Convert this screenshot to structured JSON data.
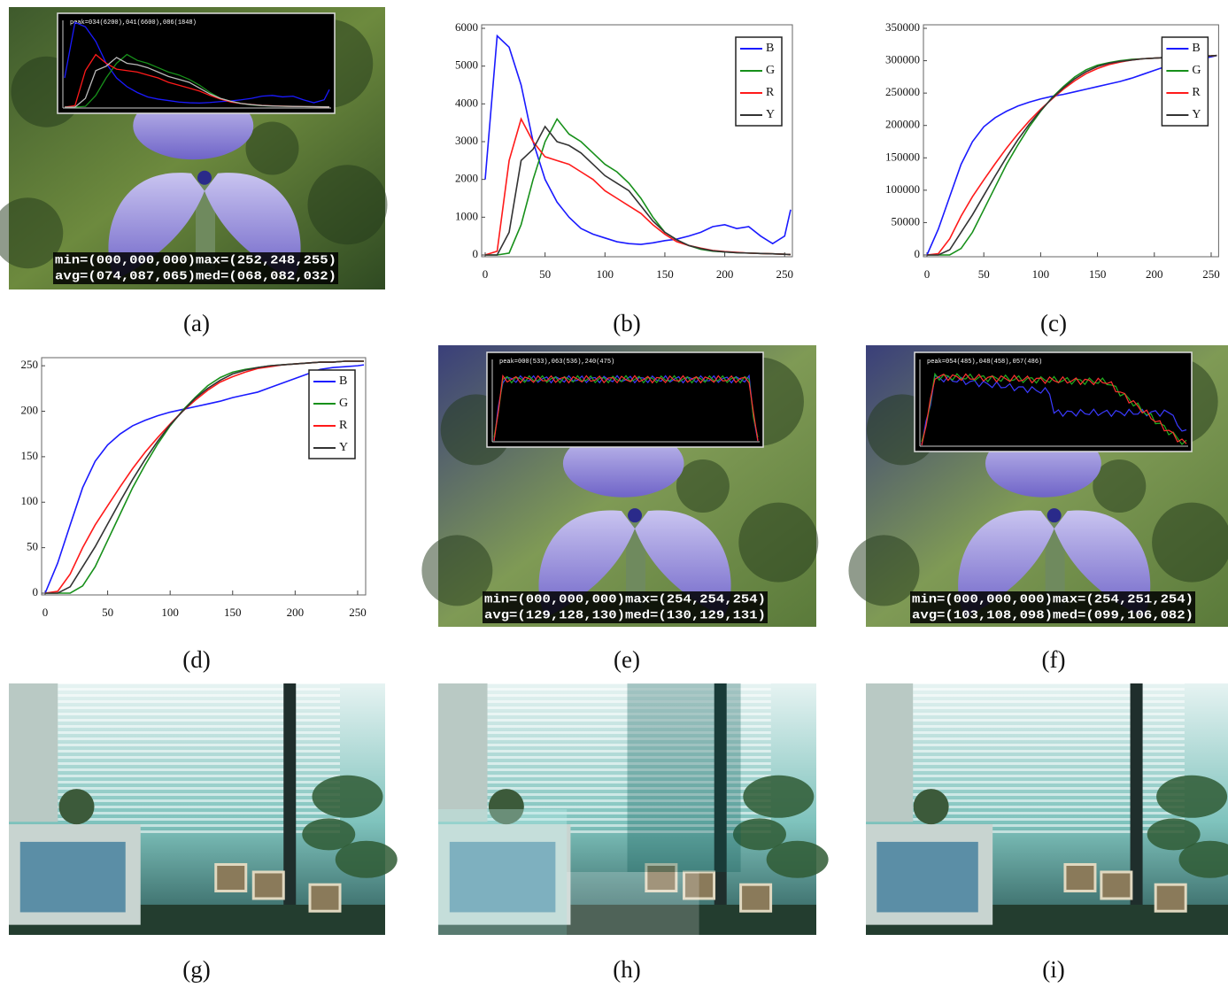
{
  "chart_data": [
    {
      "type": "line",
      "x": [
        0,
        10,
        20,
        30,
        40,
        50,
        60,
        70,
        80,
        90,
        100,
        110,
        120,
        130,
        140,
        150,
        160,
        170,
        180,
        190,
        200,
        210,
        220,
        230,
        240,
        250,
        255
      ],
      "xlim": [
        0,
        255
      ],
      "xticks": [
        0,
        50,
        100,
        150,
        200,
        250
      ],
      "ylim": [
        0,
        6000
      ],
      "yticks": [
        0,
        1000,
        2000,
        3000,
        4000,
        5000,
        6000
      ],
      "legend": "top-right",
      "series": [
        {
          "name": "B",
          "color": "#1a1aff",
          "values": [
            2000,
            5800,
            5500,
            4500,
            3000,
            2000,
            1400,
            1000,
            700,
            550,
            450,
            350,
            300,
            280,
            320,
            380,
            420,
            500,
            600,
            750,
            800,
            700,
            750,
            500,
            300,
            500,
            1200
          ]
        },
        {
          "name": "G",
          "color": "#17901a",
          "values": [
            0,
            0,
            50,
            800,
            2000,
            3000,
            3600,
            3200,
            3000,
            2700,
            2400,
            2200,
            1900,
            1500,
            1000,
            600,
            400,
            250,
            150,
            100,
            80,
            60,
            50,
            40,
            30,
            20,
            10
          ]
        },
        {
          "name": "R",
          "color": "#ff1a1a",
          "values": [
            0,
            100,
            2500,
            3600,
            3000,
            2600,
            2500,
            2400,
            2200,
            2000,
            1700,
            1500,
            1300,
            1100,
            800,
            550,
            350,
            250,
            180,
            120,
            90,
            70,
            50,
            40,
            30,
            20,
            10
          ]
        },
        {
          "name": "Y",
          "color": "#333333",
          "values": [
            0,
            0,
            600,
            2500,
            2800,
            3400,
            3000,
            2900,
            2700,
            2400,
            2100,
            1900,
            1700,
            1300,
            900,
            600,
            400,
            250,
            170,
            110,
            80,
            60,
            50,
            40,
            30,
            20,
            10
          ]
        }
      ]
    },
    {
      "type": "line",
      "x": [
        0,
        10,
        20,
        30,
        40,
        50,
        60,
        70,
        80,
        90,
        100,
        110,
        120,
        130,
        140,
        150,
        160,
        170,
        180,
        190,
        200,
        210,
        220,
        230,
        240,
        250,
        255
      ],
      "xlim": [
        0,
        255
      ],
      "xticks": [
        0,
        50,
        100,
        150,
        200,
        250
      ],
      "ylim": [
        0,
        350000
      ],
      "yticks": [
        0,
        50000,
        100000,
        150000,
        200000,
        250000,
        300000,
        350000
      ],
      "legend": "top-right",
      "series": [
        {
          "name": "B",
          "color": "#1a1aff",
          "values": [
            0,
            40000,
            90000,
            140000,
            175000,
            198000,
            212000,
            222000,
            230000,
            236000,
            241000,
            245000,
            248000,
            252000,
            256000,
            260000,
            264000,
            268000,
            273000,
            279000,
            285000,
            291000,
            297000,
            300000,
            303000,
            306000,
            308000
          ]
        },
        {
          "name": "G",
          "color": "#17901a",
          "values": [
            0,
            0,
            0,
            10000,
            35000,
            70000,
            105000,
            140000,
            170000,
            198000,
            222000,
            243000,
            260000,
            275000,
            286000,
            293000,
            297000,
            300000,
            302000,
            303000,
            304000,
            305000,
            306000,
            306500,
            307000,
            307500,
            308000
          ]
        },
        {
          "name": "R",
          "color": "#ff1a1a",
          "values": [
            0,
            2000,
            25000,
            60000,
            90000,
            116000,
            141000,
            165000,
            187000,
            207000,
            225000,
            241000,
            256000,
            269000,
            280000,
            288000,
            294000,
            298000,
            301000,
            303000,
            304000,
            305000,
            306000,
            306500,
            307000,
            307500,
            308000
          ]
        },
        {
          "name": "Y",
          "color": "#333333",
          "values": [
            0,
            0,
            8000,
            35000,
            62000,
            92000,
            122000,
            151000,
            178000,
            202000,
            223000,
            242000,
            258000,
            272000,
            283000,
            291000,
            296000,
            299000,
            301000,
            303000,
            304000,
            305000,
            306000,
            306500,
            307000,
            307500,
            308000
          ]
        }
      ]
    },
    {
      "type": "line",
      "x": [
        0,
        10,
        20,
        30,
        40,
        50,
        60,
        70,
        80,
        90,
        100,
        110,
        120,
        130,
        140,
        150,
        160,
        170,
        180,
        190,
        200,
        210,
        220,
        230,
        240,
        250,
        255
      ],
      "xlim": [
        0,
        255
      ],
      "xticks": [
        0,
        50,
        100,
        150,
        200,
        250
      ],
      "ylim": [
        0,
        255
      ],
      "yticks": [
        0,
        50,
        100,
        150,
        200,
        250
      ],
      "legend": "top-right",
      "series": [
        {
          "name": "B",
          "color": "#1a1aff",
          "values": [
            0,
            33,
            75,
            116,
            145,
            163,
            175,
            184,
            190,
            195,
            199,
            202,
            205,
            208,
            211,
            215,
            218,
            221,
            226,
            231,
            236,
            241,
            246,
            248,
            249,
            250,
            251
          ]
        },
        {
          "name": "G",
          "color": "#17901a",
          "values": [
            0,
            0,
            0,
            8,
            29,
            58,
            87,
            116,
            141,
            164,
            184,
            201,
            215,
            228,
            237,
            243,
            246,
            248,
            250,
            251,
            252,
            253,
            254,
            254,
            255,
            255,
            255
          ]
        },
        {
          "name": "R",
          "color": "#ff1a1a",
          "values": [
            0,
            2,
            21,
            50,
            75,
            96,
            117,
            137,
            155,
            171,
            186,
            200,
            212,
            223,
            232,
            238,
            243,
            247,
            249,
            251,
            252,
            253,
            254,
            254,
            255,
            255,
            255
          ]
        },
        {
          "name": "Y",
          "color": "#333333",
          "values": [
            0,
            0,
            7,
            29,
            51,
            76,
            101,
            125,
            147,
            167,
            185,
            200,
            214,
            225,
            234,
            241,
            245,
            248,
            250,
            251,
            252,
            253,
            254,
            254,
            255,
            255,
            255
          ]
        }
      ]
    }
  ],
  "captions": [
    "(a)",
    "(b)",
    "(c)",
    "(d)",
    "(e)",
    "(f)",
    "(g)",
    "(h)",
    "(i)"
  ],
  "overlays": [
    {
      "peak": "peak=034(6200),041(6600),086(1848)",
      "min_max": "min=(000,000,000)max=(252,248,255)",
      "avg_med": "avg=(074,087,065)med=(068,082,032)"
    },
    {
      "peak": "peak=000(533),063(536),240(475)",
      "min_max": "min=(000,000,000)max=(254,254,254)",
      "avg_med": "avg=(129,128,130)med=(130,129,131)"
    },
    {
      "peak": "peak=054(485),048(458),057(486)",
      "min_max": "min=(000,000,000)max=(254,251,254)",
      "avg_med": "avg=(103,108,098)med=(099,106,082)"
    }
  ]
}
